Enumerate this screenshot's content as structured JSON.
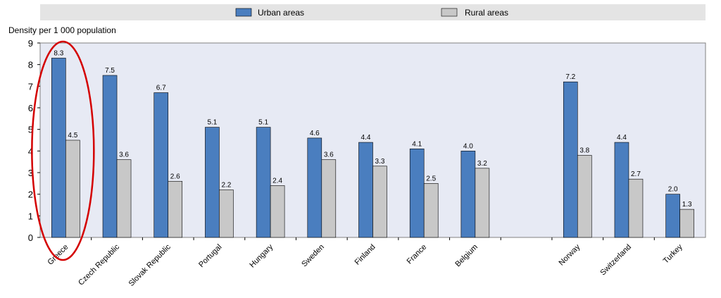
{
  "chart_data": {
    "type": "bar",
    "ylabel": "Density per 1 000 population",
    "ylim": [
      0,
      9
    ],
    "yticks": [
      0,
      1,
      2,
      3,
      4,
      5,
      6,
      7,
      8,
      9
    ],
    "legend_position": "top",
    "grid": false,
    "categories": [
      "Greece",
      "Czech Republic",
      "Slovak Republic",
      "Portugal",
      "Hungary",
      "Sweden",
      "Finland",
      "France",
      "Belgium",
      "",
      "Norway",
      "Switzerland",
      "Turkey"
    ],
    "series": [
      {
        "name": "Urban areas",
        "color": "#4a7ebf",
        "values": [
          8.3,
          7.5,
          6.7,
          5.1,
          5.1,
          4.6,
          4.4,
          4.1,
          4.0,
          null,
          7.2,
          4.4,
          2.0
        ]
      },
      {
        "name": "Rural areas",
        "color": "#c8c8c8",
        "values": [
          4.5,
          3.6,
          2.6,
          2.2,
          2.4,
          3.6,
          3.3,
          2.5,
          3.2,
          null,
          3.8,
          2.7,
          1.3
        ]
      }
    ],
    "annotation": {
      "type": "ellipse",
      "target_category": "Greece",
      "color": "#d40000"
    }
  }
}
